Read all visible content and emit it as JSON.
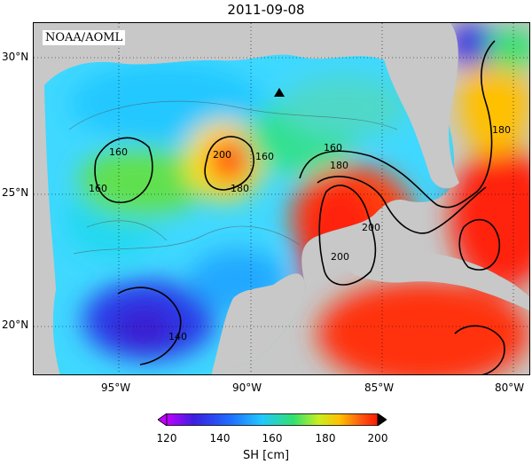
{
  "title": "2011-09-08",
  "source": "NOAA/AOML",
  "lat_labels": [
    "30°N",
    "25°N",
    "20°N"
  ],
  "lon_labels": [
    "95°W",
    "90°W",
    "85°W",
    "80°W"
  ],
  "contour_labels": [
    "160",
    "160",
    "160",
    "200",
    "180",
    "160",
    "180",
    "200",
    "200",
    "140",
    "180"
  ],
  "colorbar": {
    "title": "SH [cm]",
    "ticks": [
      "120",
      "140",
      "160",
      "180",
      "200"
    ],
    "colors": [
      "#c000ff",
      "#3a1fe0",
      "#1f6dff",
      "#20c8ff",
      "#30e070",
      "#c8ee20",
      "#ffc000",
      "#ff5a10",
      "#ff1800"
    ]
  },
  "marker": "triangle-marker"
}
